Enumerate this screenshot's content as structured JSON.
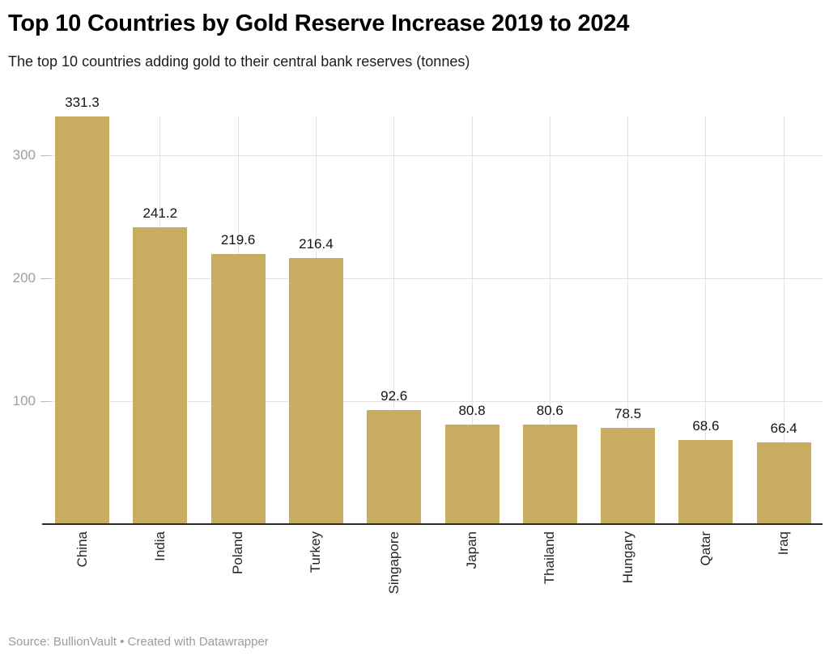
{
  "header": {
    "title": "Top 10 Countries by Gold Reserve Increase 2019 to 2024",
    "subtitle": "The top 10 countries adding gold to their central bank reserves (tonnes)"
  },
  "footer": {
    "source": "Source: BullionVault • Created with Datawrapper"
  },
  "colors": {
    "bar": "#C8AD61",
    "axis_line": "#2b2b2b",
    "gridline": "#e3e3e3",
    "tick_dash": "#bdbdbd",
    "tick_label": "#9e9e9e",
    "value_label": "#141414",
    "category_label": "#262626",
    "source_text": "#9b9b9b"
  },
  "chart_data": {
    "type": "bar",
    "title": "Top 10 Countries by Gold Reserve Increase 2019 to 2024",
    "subtitle": "The top 10 countries adding gold to their central bank reserves (tonnes)",
    "source_note": "Source: BullionVault • Created with Datawrapper",
    "categories": [
      "China",
      "India",
      "Poland",
      "Turkey",
      "Singapore",
      "Japan",
      "Thailand",
      "Hungary",
      "Qatar",
      "Iraq"
    ],
    "values": [
      331.3,
      241.2,
      219.6,
      216.4,
      92.6,
      80.8,
      80.6,
      78.5,
      68.6,
      66.4
    ],
    "value_label_decimals": 1,
    "xlabel": "",
    "ylabel": "",
    "yticks": [
      100,
      200,
      300
    ],
    "ylim": [
      0,
      332
    ],
    "grid": "horizontal ticks + vertical line at each column center",
    "legend": "none",
    "bar_color": "#C8AD61",
    "orientation": "vertical",
    "category_label_rotation": -90
  }
}
